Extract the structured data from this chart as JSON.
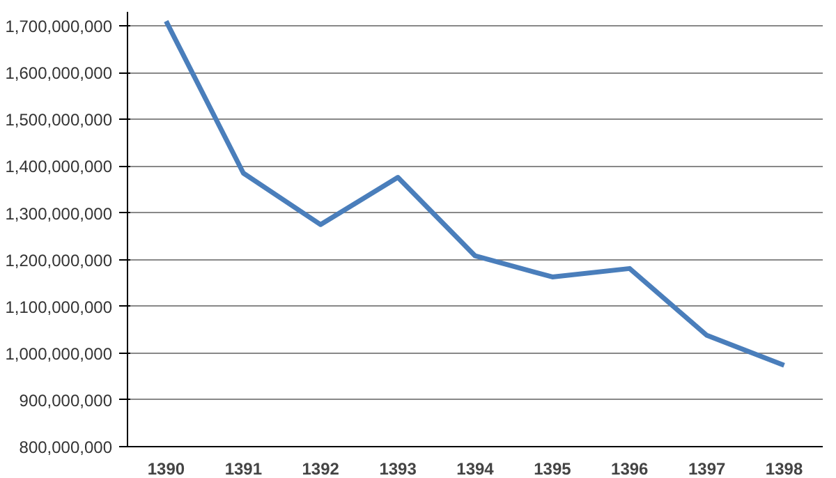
{
  "chart_data": {
    "type": "line",
    "categories": [
      "1390",
      "1391",
      "1392",
      "1393",
      "1394",
      "1395",
      "1396",
      "1397",
      "1398"
    ],
    "series": [
      {
        "color": "#4a7ebb",
        "values": [
          1710000000,
          1385000000,
          1275000000,
          1376000000,
          1208000000,
          1163000000,
          1181000000,
          1038000000,
          974000000
        ]
      }
    ],
    "ylim": [
      800000000,
      1730000000
    ],
    "yticks": [
      {
        "value": 800000000,
        "label": "800,000,000"
      },
      {
        "value": 900000000,
        "label": "900,000,000"
      },
      {
        "value": 1000000000,
        "label": "1,000,000,000"
      },
      {
        "value": 1100000000,
        "label": "1,100,000,000"
      },
      {
        "value": 1200000000,
        "label": "1,200,000,000"
      },
      {
        "value": 1300000000,
        "label": "1,300,000,000"
      },
      {
        "value": 1400000000,
        "label": "1,400,000,000"
      },
      {
        "value": 1500000000,
        "label": "1,500,000,000"
      },
      {
        "value": 1600000000,
        "label": "1,600,000,000"
      },
      {
        "value": 1700000000,
        "label": "1,700,000,000"
      }
    ],
    "grid": "y",
    "marker": "none",
    "line_style": "solid"
  }
}
